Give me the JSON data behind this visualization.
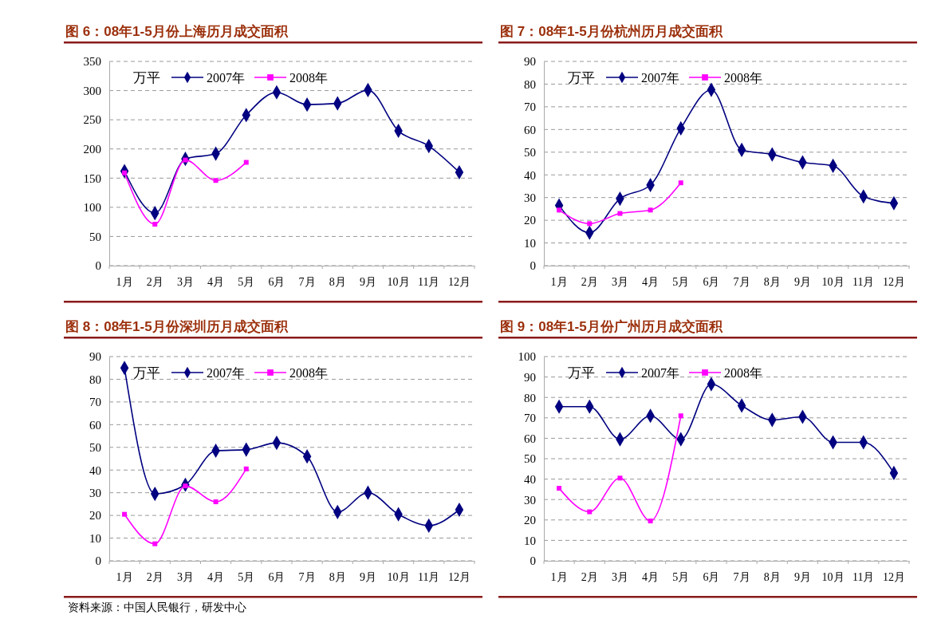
{
  "chart_data": [
    {
      "type": "line",
      "title": "图 6：08年1-5月份上海历月成交面积",
      "ylabel": "万平",
      "categories": [
        "1月",
        "2月",
        "3月",
        "4月",
        "5月",
        "6月",
        "7月",
        "8月",
        "9月",
        "10月",
        "11月",
        "12月"
      ],
      "ylim": [
        0,
        350
      ],
      "yticks": [
        0,
        50,
        100,
        150,
        200,
        250,
        300,
        350
      ],
      "grid": "y",
      "legend": "top left",
      "line_style": "solid",
      "series": [
        {
          "name": "2007年",
          "color": "#000080",
          "marker": "diamond",
          "values": [
            162,
            90,
            183,
            192,
            258,
            297,
            276,
            278,
            301,
            231,
            205,
            160
          ]
        },
        {
          "name": "2008年",
          "color": "#ff00ff",
          "marker": "square",
          "values": [
            159,
            71,
            181,
            146,
            177,
            null,
            null,
            null,
            null,
            null,
            null,
            null
          ]
        }
      ]
    },
    {
      "type": "line",
      "title": "图 7：08年1-5月份杭州历月成交面积",
      "ylabel": "万平",
      "categories": [
        "1月",
        "2月",
        "3月",
        "4月",
        "5月",
        "6月",
        "7月",
        "8月",
        "9月",
        "10月",
        "11月",
        "12月"
      ],
      "ylim": [
        0,
        90
      ],
      "yticks": [
        0,
        10,
        20,
        30,
        40,
        50,
        60,
        70,
        80,
        90
      ],
      "grid": "y",
      "legend": "top left",
      "line_style": "solid",
      "series": [
        {
          "name": "2007年",
          "color": "#000080",
          "marker": "diamond",
          "values": [
            26.5,
            14.5,
            29.5,
            35.5,
            60.5,
            77.5,
            51,
            49,
            45.5,
            44,
            30.5,
            27.5
          ]
        },
        {
          "name": "2008年",
          "color": "#ff00ff",
          "marker": "square",
          "values": [
            24.5,
            18.5,
            23,
            24.5,
            36.5,
            null,
            null,
            null,
            null,
            null,
            null,
            null
          ]
        }
      ]
    },
    {
      "type": "line",
      "title": "图 8：08年1-5月份深圳历月成交面积",
      "ylabel": "万平",
      "categories": [
        "1月",
        "2月",
        "3月",
        "4月",
        "5月",
        "6月",
        "7月",
        "8月",
        "9月",
        "10月",
        "11月",
        "12月"
      ],
      "ylim": [
        0,
        90
      ],
      "yticks": [
        0,
        10,
        20,
        30,
        40,
        50,
        60,
        70,
        80,
        90
      ],
      "grid": "y",
      "legend": "top left",
      "line_style": "solid",
      "annotations": [
        "资料来源：中国人民银行，研发中心"
      ],
      "series": [
        {
          "name": "2007年",
          "color": "#000080",
          "marker": "diamond",
          "values": [
            85,
            29.5,
            33.5,
            48.5,
            49,
            52,
            46,
            21.5,
            30,
            20.5,
            15.5,
            22.5
          ]
        },
        {
          "name": "2008年",
          "color": "#ff00ff",
          "marker": "square",
          "values": [
            20.5,
            7.5,
            33,
            26,
            40.5,
            null,
            null,
            null,
            null,
            null,
            null,
            null
          ]
        }
      ]
    },
    {
      "type": "line",
      "title": "图 9：08年1-5月份广州历月成交面积",
      "ylabel": "万平",
      "categories": [
        "1月",
        "2月",
        "3月",
        "4月",
        "5月",
        "6月",
        "7月",
        "8月",
        "9月",
        "10月",
        "11月",
        "12月"
      ],
      "ylim": [
        0,
        100
      ],
      "yticks": [
        0,
        10,
        20,
        30,
        40,
        50,
        60,
        70,
        80,
        90,
        100
      ],
      "grid": "y",
      "legend": "top left",
      "line_style": "solid",
      "series": [
        {
          "name": "2007年",
          "color": "#000080",
          "marker": "diamond",
          "values": [
            75.5,
            75.5,
            59.5,
            71,
            59.5,
            86.5,
            76,
            69,
            70.5,
            58,
            58,
            43
          ]
        },
        {
          "name": "2008年",
          "color": "#ff00ff",
          "marker": "square",
          "values": [
            35.5,
            24,
            40.5,
            19.5,
            71,
            null,
            null,
            null,
            null,
            null,
            null,
            null
          ]
        }
      ]
    }
  ]
}
